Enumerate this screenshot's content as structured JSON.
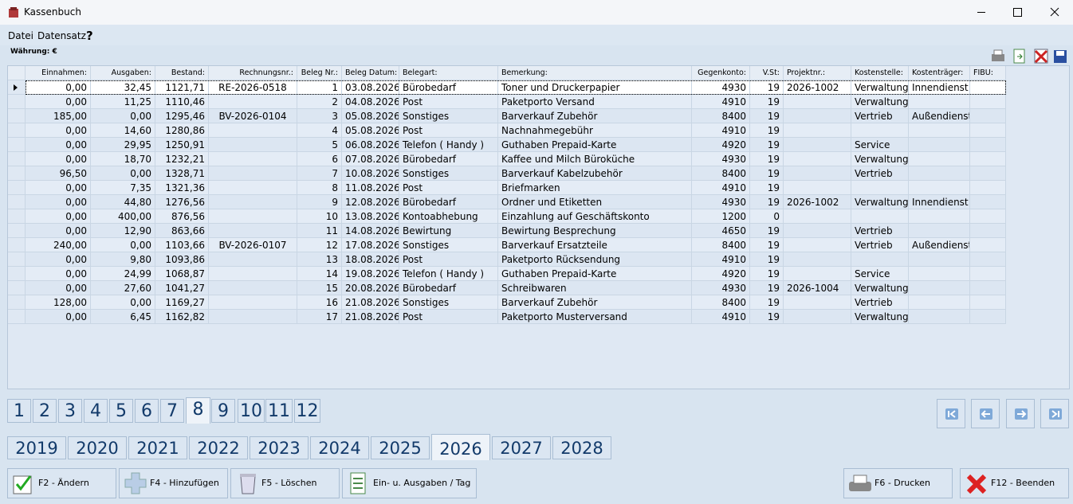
{
  "window": {
    "title": "Kassenbuch"
  },
  "menu": [
    "Datei",
    "Datensatz"
  ],
  "currency_label": "Währung: €",
  "table": {
    "columns": [
      "Einnahmen:",
      "Ausgaben:",
      "Bestand:",
      "Rechnungsnr.:",
      "Beleg Nr.:",
      "Beleg Datum:",
      "Belegart:",
      "Bemerkung:",
      "Gegenkonto:",
      "V.St:",
      "Projektnr.:",
      "Kostenstelle:",
      "Kostenträger:",
      "FIBU:"
    ],
    "rows": [
      [
        "0,00",
        "32,45",
        "1121,71",
        "RE-2026-0518",
        "1",
        "03.08.2026",
        "Bürobedarf",
        "Toner und Druckerpapier",
        "4930",
        "19",
        "2026-1002",
        "Verwaltung",
        "Innendienst",
        null
      ],
      [
        "0,00",
        "11,25",
        "1110,46",
        null,
        "2",
        "04.08.2026",
        "Post",
        "Paketporto Versand",
        "4910",
        "19",
        null,
        "Verwaltung",
        null,
        null
      ],
      [
        "185,00",
        "0,00",
        "1295,46",
        "BV-2026-0104",
        "3",
        "05.08.2026",
        "Sonstiges",
        "Barverkauf Zubehör",
        "8400",
        "19",
        null,
        "Vertrieb",
        "Außendienst",
        null
      ],
      [
        "0,00",
        "14,60",
        "1280,86",
        null,
        "4",
        "05.08.2026",
        "Post",
        "Nachnahmegebühr",
        "4910",
        "19",
        null,
        null,
        null,
        null
      ],
      [
        "0,00",
        "29,95",
        "1250,91",
        null,
        "5",
        "06.08.2026",
        "Telefon ( Handy )",
        "Guthaben Prepaid-Karte",
        "4920",
        "19",
        null,
        "Service",
        null,
        null
      ],
      [
        "0,00",
        "18,70",
        "1232,21",
        null,
        "6",
        "07.08.2026",
        "Bürobedarf",
        "Kaffee und Milch Büroküche",
        "4930",
        "19",
        null,
        "Verwaltung",
        null,
        null
      ],
      [
        "96,50",
        "0,00",
        "1328,71",
        null,
        "7",
        "10.08.2026",
        "Sonstiges",
        "Barverkauf Kabelzubehör",
        "8400",
        "19",
        null,
        "Vertrieb",
        null,
        null
      ],
      [
        "0,00",
        "7,35",
        "1321,36",
        null,
        "8",
        "11.08.2026",
        "Post",
        "Briefmarken",
        "4910",
        "19",
        null,
        null,
        null,
        null
      ],
      [
        "0,00",
        "44,80",
        "1276,56",
        null,
        "9",
        "12.08.2026",
        "Bürobedarf",
        "Ordner und Etiketten",
        "4930",
        "19",
        "2026-1002",
        "Verwaltung",
        "Innendienst",
        null
      ],
      [
        "0,00",
        "400,00",
        "876,56",
        null,
        "10",
        "13.08.2026",
        "Kontoabhebung",
        "Einzahlung auf Geschäftskonto",
        "1200",
        "0",
        null,
        null,
        null,
        null
      ],
      [
        "0,00",
        "12,90",
        "863,66",
        null,
        "11",
        "14.08.2026",
        "Bewirtung",
        "Bewirtung Besprechung",
        "4650",
        "19",
        null,
        "Vertrieb",
        null,
        null
      ],
      [
        "240,00",
        "0,00",
        "1103,66",
        "BV-2026-0107",
        "12",
        "17.08.2026",
        "Sonstiges",
        "Barverkauf Ersatzteile",
        "8400",
        "19",
        null,
        "Vertrieb",
        "Außendienst",
        null
      ],
      [
        "0,00",
        "9,80",
        "1093,86",
        null,
        "13",
        "18.08.2026",
        "Post",
        "Paketporto Rücksendung",
        "4910",
        "19",
        null,
        null,
        null,
        null
      ],
      [
        "0,00",
        "24,99",
        "1068,87",
        null,
        "14",
        "19.08.2026",
        "Telefon ( Handy )",
        "Guthaben Prepaid-Karte",
        "4920",
        "19",
        null,
        "Service",
        null,
        null
      ],
      [
        "0,00",
        "27,60",
        "1041,27",
        null,
        "15",
        "20.08.2026",
        "Bürobedarf",
        "Schreibwaren",
        "4930",
        "19",
        "2026-1004",
        "Verwaltung",
        null,
        null
      ],
      [
        "128,00",
        "0,00",
        "1169,27",
        null,
        "16",
        "21.08.2026",
        "Sonstiges",
        "Barverkauf Zubehör",
        "8400",
        "19",
        null,
        "Vertrieb",
        null,
        null
      ],
      [
        "0,00",
        "6,45",
        "1162,82",
        null,
        "17",
        "21.08.2026",
        "Post",
        "Paketporto Musterversand",
        "4910",
        "19",
        null,
        "Verwaltung",
        null,
        null
      ]
    ]
  },
  "months": [
    "1",
    "2",
    "3",
    "4",
    "5",
    "6",
    "7",
    "8",
    "9",
    "10",
    "11",
    "12"
  ],
  "years": [
    "2019",
    "2020",
    "2021",
    "2022",
    "2023",
    "2024",
    "2025",
    "2026",
    "2027",
    "2028"
  ],
  "buttons": [
    "F2 - Ändern",
    "F4 - Hinzufügen",
    "F5 - Löschen",
    "Ein- u. Ausgaben / Tag",
    "F6 - Drucken",
    "F12 - Beenden"
  ]
}
